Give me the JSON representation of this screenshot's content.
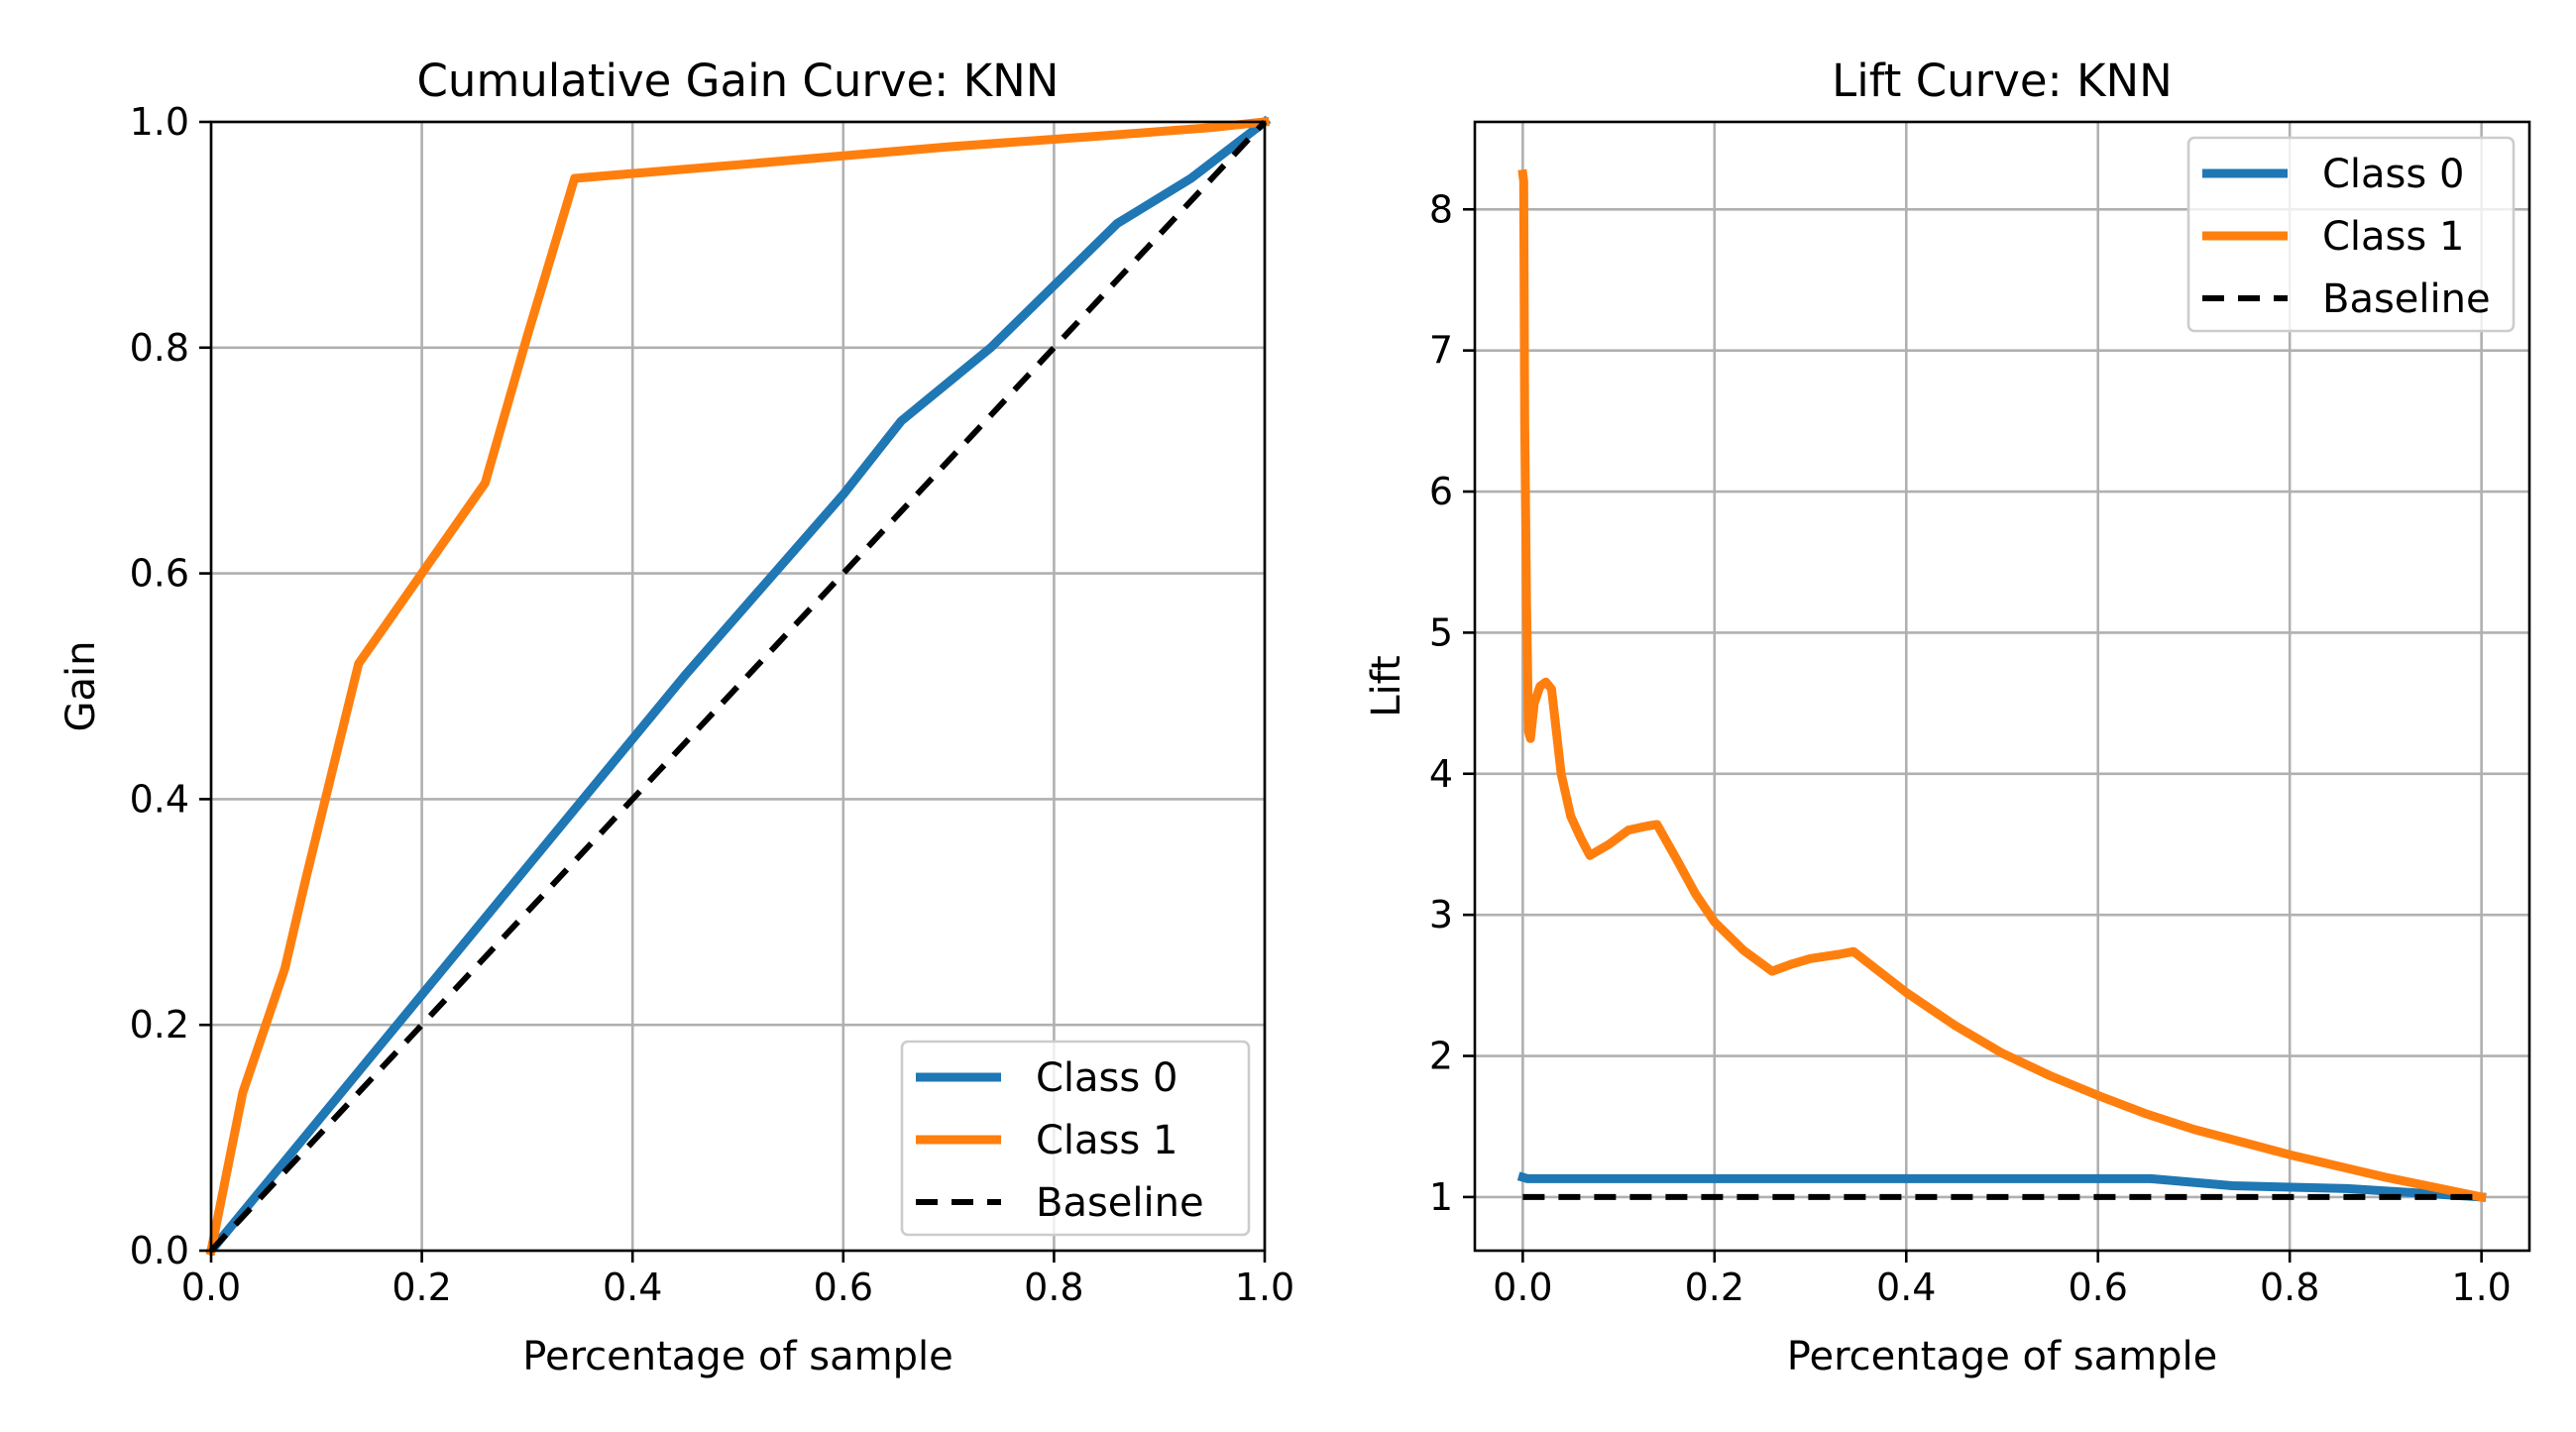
{
  "chart_data": [
    {
      "type": "line",
      "title": "Cumulative Gain Curve: KNN",
      "xlabel": "Percentage of sample",
      "ylabel": "Gain",
      "xlim": [
        0.0,
        1.0
      ],
      "ylim": [
        0.0,
        1.0
      ],
      "xticks": [
        "0.0",
        "0.2",
        "0.4",
        "0.6",
        "0.8",
        "1.0"
      ],
      "yticks": [
        "0.0",
        "0.2",
        "0.4",
        "0.6",
        "0.8",
        "1.0"
      ],
      "grid": true,
      "legend_position": "lower-right",
      "series": [
        {
          "name": "Class 0",
          "color": "#1f77b4",
          "style": "solid",
          "x": [
            0.0,
            0.15,
            0.3,
            0.45,
            0.6,
            0.655,
            0.74,
            0.86,
            0.93,
            1.0
          ],
          "y": [
            0.0,
            0.17,
            0.34,
            0.51,
            0.67,
            0.735,
            0.8,
            0.91,
            0.95,
            1.0
          ]
        },
        {
          "name": "Class 1",
          "color": "#ff7f0e",
          "style": "solid",
          "x": [
            0.0,
            0.03,
            0.07,
            0.09,
            0.14,
            0.2,
            0.26,
            0.3,
            0.345,
            0.5,
            0.7,
            0.85,
            0.95,
            1.0
          ],
          "y": [
            0.0,
            0.14,
            0.25,
            0.33,
            0.52,
            0.6,
            0.68,
            0.81,
            0.95,
            0.962,
            0.978,
            0.988,
            0.995,
            1.0
          ]
        },
        {
          "name": "Baseline",
          "color": "#000000",
          "style": "dashed",
          "x": [
            0.0,
            1.0
          ],
          "y": [
            0.0,
            1.0
          ]
        }
      ]
    },
    {
      "type": "line",
      "title": "Lift Curve: KNN",
      "xlabel": "Percentage of sample",
      "ylabel": "Lift",
      "xlim": [
        -0.05,
        1.05
      ],
      "ylim": [
        0.62,
        8.62
      ],
      "xticks": [
        "0.0",
        "0.2",
        "0.4",
        "0.6",
        "0.8",
        "1.0"
      ],
      "yticks": [
        "1",
        "2",
        "3",
        "4",
        "5",
        "6",
        "7",
        "8"
      ],
      "grid": true,
      "legend_position": "upper-right",
      "series": [
        {
          "name": "Class 0",
          "color": "#1f77b4",
          "style": "solid",
          "x": [
            0.0,
            0.005,
            0.02,
            0.1,
            0.3,
            0.5,
            0.655,
            0.74,
            0.86,
            0.93,
            1.0
          ],
          "y": [
            1.14,
            1.13,
            1.13,
            1.13,
            1.13,
            1.13,
            1.13,
            1.08,
            1.06,
            1.03,
            1.0
          ]
        },
        {
          "name": "Class 1",
          "color": "#ff7f0e",
          "style": "solid",
          "x": [
            0.0,
            0.001,
            0.002,
            0.004,
            0.006,
            0.008,
            0.012,
            0.018,
            0.024,
            0.03,
            0.04,
            0.05,
            0.06,
            0.07,
            0.09,
            0.11,
            0.13,
            0.14,
            0.16,
            0.18,
            0.2,
            0.23,
            0.26,
            0.28,
            0.3,
            0.33,
            0.345,
            0.4,
            0.45,
            0.5,
            0.55,
            0.6,
            0.65,
            0.7,
            0.75,
            0.8,
            0.85,
            0.9,
            0.95,
            1.0
          ],
          "y": [
            8.25,
            8.2,
            6.5,
            5.2,
            4.3,
            4.25,
            4.5,
            4.62,
            4.65,
            4.6,
            4.0,
            3.7,
            3.55,
            3.42,
            3.5,
            3.6,
            3.63,
            3.64,
            3.4,
            3.15,
            2.95,
            2.75,
            2.6,
            2.65,
            2.69,
            2.72,
            2.74,
            2.45,
            2.22,
            2.02,
            1.86,
            1.72,
            1.59,
            1.48,
            1.39,
            1.3,
            1.22,
            1.14,
            1.07,
            1.0
          ]
        },
        {
          "name": "Baseline",
          "color": "#000000",
          "style": "dashed",
          "x": [
            0.0,
            1.0
          ],
          "y": [
            1.0,
            1.0
          ]
        }
      ]
    }
  ]
}
